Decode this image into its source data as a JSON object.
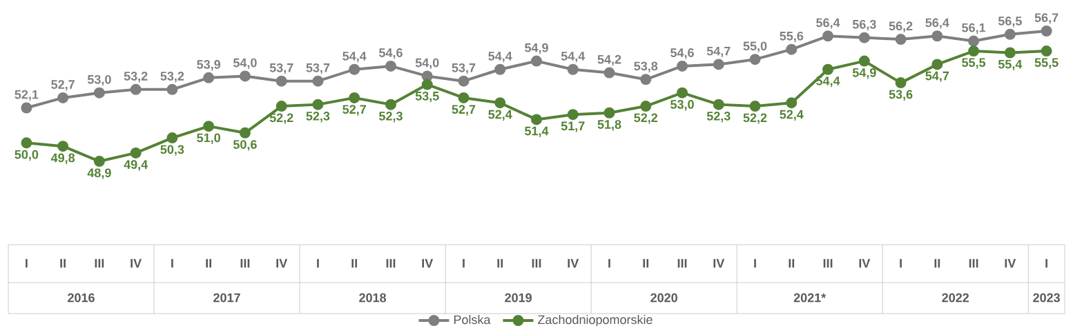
{
  "chart_data": {
    "type": "line",
    "categories": [
      "I",
      "II",
      "III",
      "IV",
      "I",
      "II",
      "III",
      "IV",
      "I",
      "II",
      "III",
      "IV",
      "I",
      "II",
      "III",
      "IV",
      "I",
      "II",
      "III",
      "IV",
      "I",
      "II",
      "III",
      "IV",
      "I",
      "II",
      "III",
      "IV",
      "I"
    ],
    "series": [
      {
        "name": "Polska",
        "color": "#7f7f7f",
        "values": [
          52.1,
          52.7,
          53.0,
          53.2,
          53.2,
          53.9,
          54.0,
          53.7,
          53.7,
          54.4,
          54.6,
          54.0,
          53.7,
          54.4,
          54.9,
          54.4,
          54.2,
          53.8,
          54.6,
          54.7,
          55.0,
          55.6,
          56.4,
          56.3,
          56.2,
          56.4,
          56.1,
          56.5,
          56.7
        ],
        "value_labels": [
          "52,1",
          "52,7",
          "53,0",
          "53,2",
          "53,2",
          "53,9",
          "54,0",
          "53,7",
          "53,7",
          "54,4",
          "54,6",
          "54,0",
          "53,7",
          "54,4",
          "54,9",
          "54,4",
          "54,2",
          "53,8",
          "54,6",
          "54,7",
          "55,0",
          "55,6",
          "56,4",
          "56,3",
          "56,2",
          "56,4",
          "56,1",
          "56,5",
          "56,7"
        ]
      },
      {
        "name": "Zachodniopomorskie",
        "color": "#548235",
        "values": [
          50.0,
          49.8,
          48.9,
          49.4,
          50.3,
          51.0,
          50.6,
          52.2,
          52.3,
          52.7,
          52.3,
          53.5,
          52.7,
          52.4,
          51.4,
          51.7,
          51.8,
          52.2,
          53.0,
          52.3,
          52.2,
          52.4,
          54.4,
          54.9,
          53.6,
          54.7,
          55.5,
          55.4,
          55.5
        ],
        "value_labels": [
          "50,0",
          "49,8",
          "48,9",
          "49,4",
          "50,3",
          "51,0",
          "50,6",
          "52,2",
          "52,3",
          "52,7",
          "52,3",
          "53,5",
          "52,7",
          "52,4",
          "51,4",
          "51,7",
          "51,8",
          "52,2",
          "53,0",
          "52,3",
          "52,2",
          "52,4",
          "54,4",
          "54,9",
          "53,6",
          "54,7",
          "55,5",
          "55,4",
          "55,5"
        ]
      }
    ],
    "tick_labels": "x",
    "legend": "bottom",
    "marker": "circle",
    "annotations": [
      "2016",
      "2017",
      "2018",
      "2019",
      "2020",
      "2021*",
      "2022",
      "2023"
    ]
  }
}
